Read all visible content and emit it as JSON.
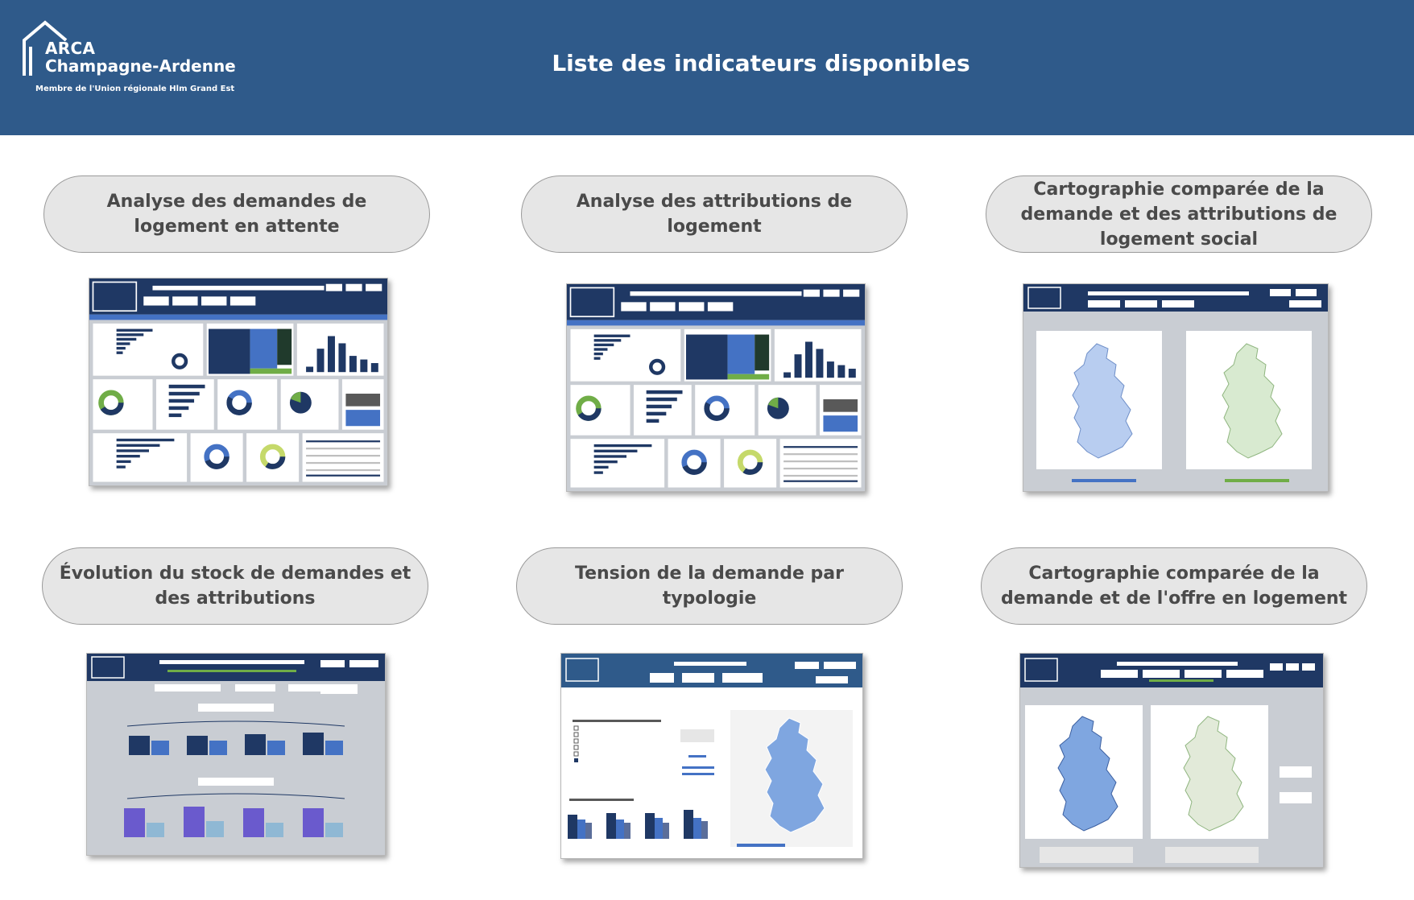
{
  "header": {
    "title": "Liste des indicateurs disponibles",
    "logo": {
      "line1": "ARCA",
      "line2": "Champagne-Ardenne",
      "line3": "Membre de l'Union régionale Hlm Grand Est"
    }
  },
  "colors": {
    "header_bg": "#2f5a8a",
    "pill_bg": "#e6e6e6",
    "pill_border": "#9a9a9a",
    "pill_text": "#4a4a4a",
    "report_navy": "#1f3864",
    "report_blue": "#4472c4",
    "report_green": "#70ad47"
  },
  "indicators": [
    {
      "label": "Analyse des demandes de logement en attente",
      "thumbnail": "dashboard-demandes-preview"
    },
    {
      "label": "Analyse des attributions de logement",
      "thumbnail": "dashboard-attributions-preview"
    },
    {
      "label": "Cartographie comparée de la demande et des attributions de logement social",
      "thumbnail": "map-demande-attributions-preview"
    },
    {
      "label": "Évolution du stock de demandes et des attributions",
      "thumbnail": "stock-evolution-preview"
    },
    {
      "label": "Tension de la demande par typologie",
      "thumbnail": "tension-typologie-preview"
    },
    {
      "label": "Cartographie comparée de la demande et de l'offre en logement",
      "thumbnail": "map-demande-offre-preview"
    }
  ]
}
